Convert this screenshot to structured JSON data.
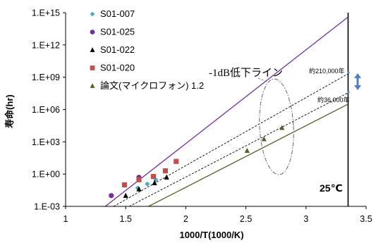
{
  "chart_data": {
    "type": "scatter",
    "xlabel": "1000/T(1000/K)",
    "ylabel": "寿命(hr)",
    "xlim": [
      1,
      3.5
    ],
    "ylim_log10": [
      -3,
      15
    ],
    "x_ticks": [
      "1",
      "1.5",
      "2",
      "2.5",
      "3",
      "3.5"
    ],
    "y_ticks": [
      "1.E-03",
      "1.E+00",
      "1.E+03",
      "1.E+06",
      "1.E+09",
      "1.E+12",
      "1.E+15"
    ],
    "grid": false,
    "legend_position": "top-left",
    "series": [
      {
        "name": "S01-007",
        "marker": "diamond",
        "color": "#4bacc6",
        "points": [
          [
            1.6,
            0.05
          ],
          [
            1.68,
            0.12
          ],
          [
            1.75,
            0.3
          ]
        ]
      },
      {
        "name": "S01-025",
        "marker": "circle",
        "color": "#7030a0",
        "points": [
          [
            1.38,
            0.01
          ],
          [
            1.61,
            0.5
          ]
        ]
      },
      {
        "name": "S01-022",
        "marker": "triangle",
        "color": "#000000",
        "points": [
          [
            1.5,
            0.01
          ],
          [
            1.61,
            0.04
          ],
          [
            1.74,
            0.15
          ],
          [
            1.84,
            0.5
          ]
        ]
      },
      {
        "name": "S01-020",
        "marker": "square",
        "color": "#c0504d",
        "points": [
          [
            1.49,
            0.1
          ],
          [
            1.61,
            0.3
          ],
          [
            1.73,
            0.6
          ],
          [
            1.83,
            2
          ],
          [
            1.92,
            15
          ]
        ]
      },
      {
        "name": "論文(マイクロフォン) 1.2",
        "marker": "triangle",
        "color": "#4f6228",
        "points": [
          [
            2.51,
            150
          ],
          [
            2.65,
            1800
          ],
          [
            2.8,
            20000
          ]
        ]
      }
    ],
    "lines": [
      {
        "color": "#7030a0",
        "style": "solid",
        "from": [
          1.33,
          0.001
        ],
        "to": [
          3.35,
          400000000000000.0
        ]
      },
      {
        "color": "#000000",
        "style": "dashed",
        "from": [
          1.4,
          0.001
        ],
        "to": [
          3.35,
          2100000000.0
        ]
      },
      {
        "color": "#000000",
        "style": "dashed",
        "from": [
          1.53,
          0.001
        ],
        "to": [
          3.35,
          36000000.0
        ]
      },
      {
        "color": "#4f6228",
        "style": "solid",
        "from": [
          1.69,
          0.001
        ],
        "to": [
          3.35,
          3200000.0
        ]
      }
    ],
    "annotations": {
      "main": "-1dB低下ライン",
      "upper": "約210,000年",
      "lower": "約36,000年",
      "temperature": "25℃"
    },
    "reference_x": 3.35,
    "colors": {
      "arrow": "#4f81bd"
    }
  }
}
